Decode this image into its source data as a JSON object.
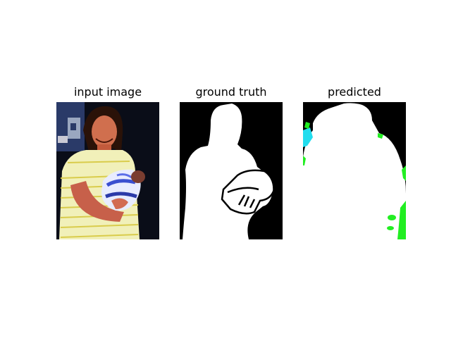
{
  "figure": {
    "panels": [
      {
        "title": "input image"
      },
      {
        "title": "ground truth"
      },
      {
        "title": "predicted"
      }
    ],
    "colors": {
      "background": "#ffffff",
      "mask_foreground": "#ffffff",
      "mask_background": "#000000",
      "prediction_artifact_green": "#22ee22",
      "prediction_artifact_cyan": "#22ddee"
    }
  }
}
